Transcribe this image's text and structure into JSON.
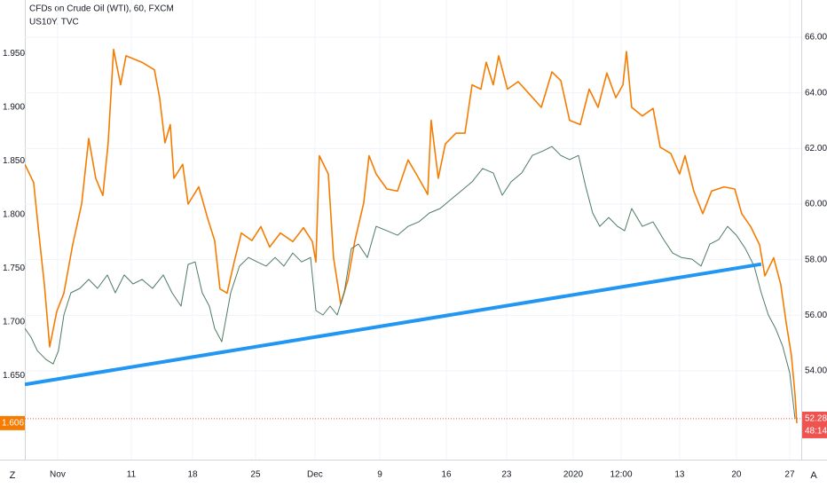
{
  "chart_data": {
    "type": "line",
    "series": [
      {
        "name": "US10Y, TVC",
        "color": "#f57c00",
        "axis": "y",
        "x": [
          -2.64,
          -1.93,
          -1.5,
          -1.07,
          -0.64,
          -0.07,
          0.5,
          1.21,
          1.93,
          2.5,
          3.07,
          3.64,
          4.07,
          4.5,
          5.07,
          5.5,
          6.79,
          7.79,
          8.21,
          8.64,
          9.07,
          9.36,
          10.07,
          10.5,
          11.36,
          12.07,
          12.64,
          13.07,
          13.64,
          14.21,
          14.79,
          15.64,
          16.36,
          17.07,
          17.93,
          18.93,
          19.79,
          20.5,
          20.79,
          21.07,
          21.79,
          22.21,
          22.79,
          23.36,
          23.93,
          24.64,
          25.07,
          25.64,
          26.5,
          27.36,
          28.21,
          29.07,
          29.79,
          30.07,
          30.64,
          31.21,
          32.07,
          32.79,
          33.36,
          34.07,
          34.5,
          35.07,
          35.5,
          36.21,
          37.07,
          37.93,
          38.93,
          39.79,
          40.5,
          41.21,
          42.07,
          42.79,
          43.5,
          44.21,
          44.93,
          45.5,
          45.79,
          46.21,
          47.07,
          47.93,
          48.5,
          49.36,
          50.07,
          50.5,
          51.21,
          51.93,
          52.64,
          53.64,
          54.5,
          55.07,
          55.79,
          56.5,
          56.93,
          57.64,
          58.21,
          58.64,
          59.07,
          59.36,
          59.5
        ],
        "values": [
          1.847,
          1.83,
          1.781,
          1.735,
          1.677,
          1.71,
          1.727,
          1.772,
          1.81,
          1.871,
          1.834,
          1.818,
          1.867,
          1.954,
          1.921,
          1.948,
          1.942,
          1.935,
          1.909,
          1.867,
          1.884,
          1.834,
          1.847,
          1.81,
          1.826,
          1.797,
          1.776,
          1.731,
          1.727,
          1.756,
          1.783,
          1.776,
          1.789,
          1.77,
          1.783,
          1.775,
          1.788,
          1.775,
          1.756,
          1.855,
          1.838,
          1.76,
          1.717,
          1.739,
          1.776,
          1.811,
          1.855,
          1.838,
          1.824,
          1.822,
          1.851,
          1.834,
          1.819,
          1.888,
          1.834,
          1.866,
          1.876,
          1.876,
          1.921,
          1.917,
          1.942,
          1.921,
          1.948,
          1.917,
          1.924,
          1.913,
          1.9,
          1.933,
          1.925,
          1.888,
          1.884,
          1.917,
          1.9,
          1.932,
          1.909,
          1.921,
          1.952,
          1.9,
          1.892,
          1.899,
          1.863,
          1.857,
          1.838,
          1.855,
          1.822,
          1.801,
          1.822,
          1.826,
          1.824,
          1.801,
          1.789,
          1.772,
          1.743,
          1.76,
          1.735,
          1.7,
          1.669,
          1.632,
          1.606
        ]
      },
      {
        "name": "CFDs on Crude Oil (WTI), 60, FXCM",
        "color": "#4f7a64",
        "axis": "y2",
        "x": [
          -2.64,
          -2.14,
          -1.64,
          -0.93,
          -0.36,
          0.07,
          0.5,
          1.07,
          1.79,
          2.5,
          3.21,
          4.0,
          4.64,
          5.36,
          6.07,
          6.79,
          7.64,
          8.5,
          9.21,
          9.93,
          10.5,
          11.07,
          11.64,
          12.21,
          12.64,
          13.21,
          13.93,
          14.64,
          15.36,
          16.07,
          16.79,
          17.5,
          18.21,
          18.93,
          19.64,
          20.36,
          20.79,
          21.36,
          21.93,
          22.5,
          23.07,
          23.64,
          24.21,
          24.93,
          25.64,
          26.5,
          27.36,
          28.21,
          29.07,
          29.93,
          30.79,
          31.64,
          32.5,
          33.36,
          34.21,
          35.07,
          35.79,
          36.5,
          37.36,
          38.21,
          39.07,
          39.79,
          40.5,
          41.21,
          41.93,
          42.5,
          43.07,
          43.64,
          44.36,
          45.07,
          45.64,
          46.21,
          47.07,
          47.93,
          48.79,
          49.5,
          50.21,
          51.07,
          51.79,
          52.5,
          53.21,
          53.93,
          54.64,
          55.36,
          56.07,
          56.64,
          57.21,
          57.79,
          58.36,
          58.93,
          59.36
        ],
        "values": [
          55.53,
          55.21,
          54.73,
          54.41,
          54.25,
          54.73,
          56.01,
          56.81,
          56.97,
          57.29,
          56.97,
          57.45,
          56.81,
          57.45,
          57.13,
          57.29,
          56.97,
          57.45,
          56.81,
          56.33,
          57.83,
          57.92,
          56.81,
          56.33,
          55.53,
          55.05,
          56.81,
          57.77,
          58.08,
          57.92,
          57.77,
          58.08,
          57.77,
          58.24,
          57.92,
          58.08,
          56.17,
          56.01,
          56.33,
          56.01,
          56.81,
          58.4,
          58.56,
          58.08,
          59.2,
          59.04,
          58.88,
          59.2,
          59.36,
          59.68,
          59.84,
          60.16,
          60.48,
          60.8,
          61.28,
          61.12,
          60.32,
          60.8,
          61.12,
          61.75,
          61.91,
          62.07,
          61.75,
          61.6,
          61.75,
          60.64,
          59.68,
          59.2,
          59.52,
          59.2,
          59.04,
          59.84,
          59.2,
          59.36,
          58.72,
          58.24,
          58.08,
          58.02,
          57.77,
          58.56,
          58.72,
          59.2,
          58.88,
          58.4,
          57.77,
          56.81,
          56.01,
          55.53,
          54.89,
          53.93,
          52.28
        ]
      }
    ],
    "trendline": {
      "color": "#2196f3",
      "x": [
        -2.64,
        56.64
      ],
      "values": [
        1.642,
        1.754
      ]
    },
    "xlim": [
      -2.64,
      59.86
    ],
    "xticks": [
      {
        "value": 0,
        "label": "Nov"
      },
      {
        "value": 5.93,
        "label": "11"
      },
      {
        "value": 10.86,
        "label": "18"
      },
      {
        "value": 15.93,
        "label": "25"
      },
      {
        "value": 20.71,
        "label": "Dec"
      },
      {
        "value": 25.93,
        "label": "9"
      },
      {
        "value": 31.29,
        "label": "16"
      },
      {
        "value": 36.14,
        "label": "23"
      },
      {
        "value": 41.5,
        "label": "2020"
      },
      {
        "value": 45.36,
        "label": "12:00"
      },
      {
        "value": 50.07,
        "label": "13"
      },
      {
        "value": 54.64,
        "label": "20"
      },
      {
        "value": 58.93,
        "label": "27"
      }
    ],
    "ylim": [
      1.572,
      2.0
    ],
    "yticks": [
      {
        "value": 1.65,
        "label": "1.650"
      },
      {
        "value": 1.7,
        "label": "1.700"
      },
      {
        "value": 1.75,
        "label": "1.750"
      },
      {
        "value": 1.8,
        "label": "1.800"
      },
      {
        "value": 1.85,
        "label": "1.850"
      },
      {
        "value": 1.9,
        "label": "1.900"
      },
      {
        "value": 1.95,
        "label": "1.950"
      }
    ],
    "y2lim": [
      50.81,
      67.34
    ],
    "y2ticks": [
      {
        "value": 54,
        "label": "54.00"
      },
      {
        "value": 56,
        "label": "56.00"
      },
      {
        "value": 58,
        "label": "58.00"
      },
      {
        "value": 60,
        "label": "60.00"
      },
      {
        "value": 62,
        "label": "62.00"
      },
      {
        "value": 64,
        "label": "64.00"
      },
      {
        "value": 66,
        "label": "66.00"
      }
    ],
    "last_value": 1.606,
    "last_value_y2": 52.28,
    "countdown": "48:14",
    "grid": true,
    "corner_left": "Z",
    "corner_right": "A"
  }
}
